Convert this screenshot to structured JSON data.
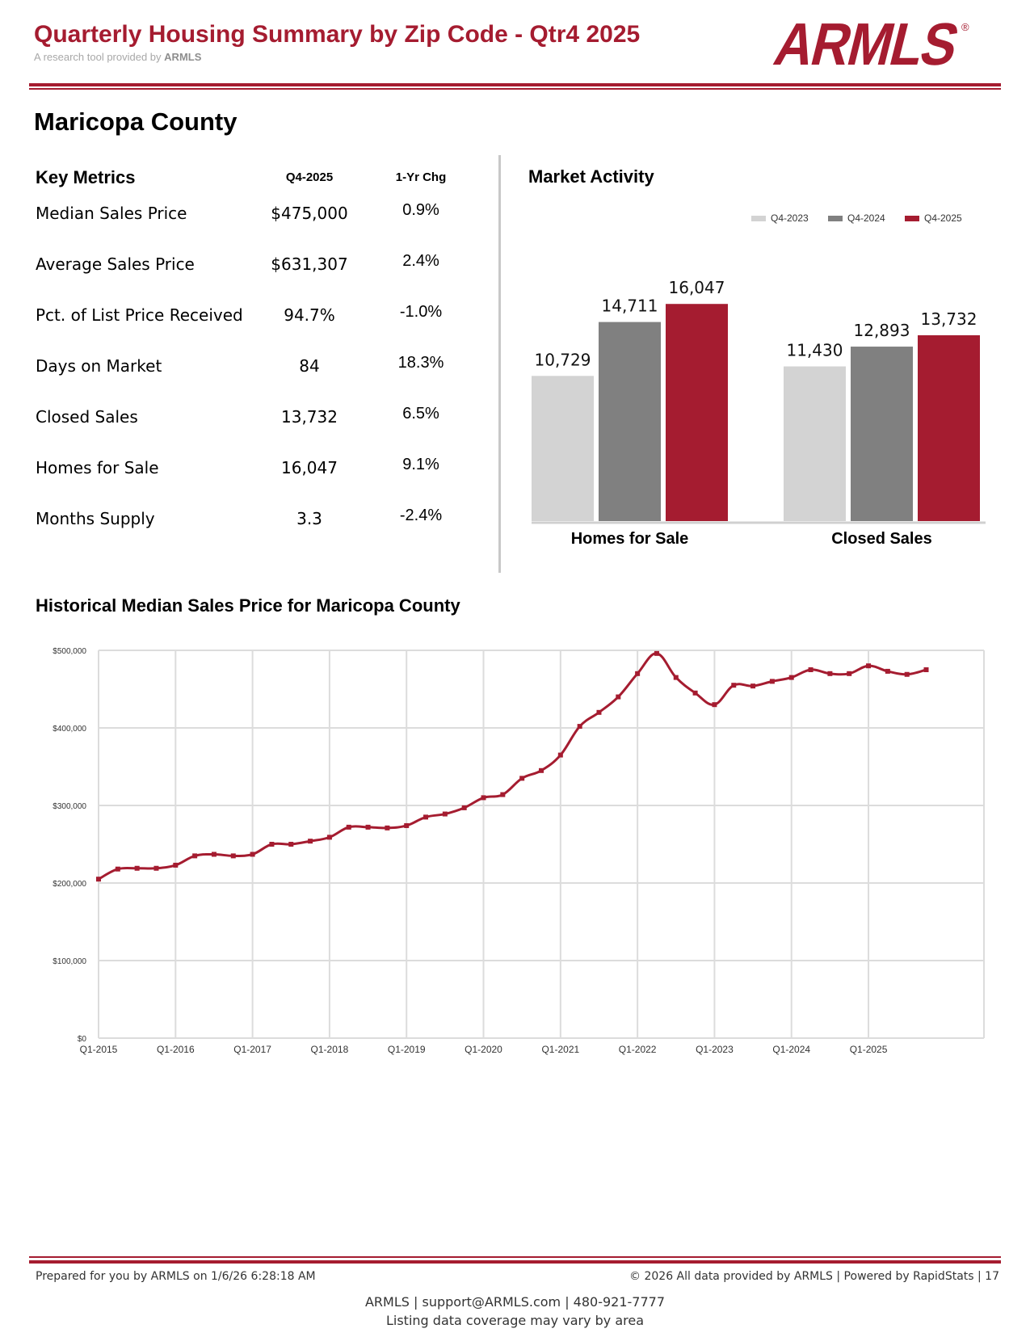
{
  "header": {
    "title": "Quarterly Housing Summary by Zip Code - Qtr4 2025",
    "subtitle_prefix": "A research tool provided by",
    "subtitle_brand": "ARMLS",
    "logo_text": "ARMLS",
    "logo_mark": "®"
  },
  "area": {
    "name": "Maricopa County"
  },
  "key_metrics": {
    "heading": "Key Metrics",
    "col_period": "Q4-2025",
    "col_change": "1-Yr Chg",
    "rows": [
      {
        "label": "Median Sales Price",
        "value": "$475,000",
        "change": "0.9%"
      },
      {
        "label": "Average Sales Price",
        "value": "$631,307",
        "change": "2.4%"
      },
      {
        "label": "Pct. of List Price Received",
        "value": "94.7%",
        "change": "-1.0%"
      },
      {
        "label": "Days on Market",
        "value": "84",
        "change": "18.3%"
      },
      {
        "label": "Closed Sales",
        "value": "13,732",
        "change": "6.5%"
      },
      {
        "label": "Homes for Sale",
        "value": "16,047",
        "change": "9.1%"
      },
      {
        "label": "Months Supply",
        "value": "3.3",
        "change": "-2.4%"
      }
    ]
  },
  "chart_data": [
    {
      "type": "bar",
      "title": "Market Activity",
      "categories": [
        "Homes for Sale",
        "Closed Sales"
      ],
      "series": [
        {
          "name": "Q4-2023",
          "values": [
            10729,
            11430
          ],
          "labels": [
            "10,729",
            "11,430"
          ],
          "color": "#d3d3d3"
        },
        {
          "name": "Q4-2024",
          "values": [
            14711,
            12893
          ],
          "labels": [
            "14,711",
            "12,893"
          ],
          "color": "#808080"
        },
        {
          "name": "Q4-2025",
          "values": [
            16047,
            13732
          ],
          "labels": [
            "16,047",
            "13,732"
          ],
          "color": "#a51c30"
        }
      ],
      "legend": "top-right",
      "ylim": [
        0,
        20000
      ],
      "grid": false
    },
    {
      "type": "line",
      "title": "Historical Median Sales Price for Maricopa County",
      "x_ticks": [
        "Q1-2015",
        "Q1-2016",
        "Q1-2017",
        "Q1-2018",
        "Q1-2019",
        "Q1-2020",
        "Q1-2021",
        "Q1-2022",
        "Q1-2023",
        "Q1-2024",
        "Q1-2025"
      ],
      "y_ticks": [
        "$0",
        "$100,000",
        "$200,000",
        "$300,000",
        "$400,000",
        "$500,000"
      ],
      "ylim": [
        0,
        500000
      ],
      "grid": true,
      "color": "#a51c30",
      "series": [
        {
          "name": "Median Sales Price",
          "x": [
            "Q1-2015",
            "Q2-2015",
            "Q3-2015",
            "Q4-2015",
            "Q1-2016",
            "Q2-2016",
            "Q3-2016",
            "Q4-2016",
            "Q1-2017",
            "Q2-2017",
            "Q3-2017",
            "Q4-2017",
            "Q1-2018",
            "Q2-2018",
            "Q3-2018",
            "Q4-2018",
            "Q1-2019",
            "Q2-2019",
            "Q3-2019",
            "Q4-2019",
            "Q1-2020",
            "Q2-2020",
            "Q3-2020",
            "Q4-2020",
            "Q1-2021",
            "Q2-2021",
            "Q3-2021",
            "Q4-2021",
            "Q1-2022",
            "Q2-2022",
            "Q3-2022",
            "Q4-2022",
            "Q1-2023",
            "Q2-2023",
            "Q3-2023",
            "Q4-2023",
            "Q1-2024",
            "Q2-2024",
            "Q3-2024",
            "Q4-2024",
            "Q1-2025",
            "Q2-2025",
            "Q3-2025",
            "Q4-2025"
          ],
          "values": [
            205000,
            218000,
            219000,
            219000,
            223000,
            235000,
            237000,
            235000,
            237000,
            250000,
            250000,
            254000,
            259000,
            272000,
            272000,
            271000,
            274000,
            285000,
            289000,
            297000,
            310000,
            314000,
            335000,
            345000,
            365000,
            402000,
            420000,
            440000,
            470000,
            496000,
            465000,
            445000,
            430000,
            455000,
            454000,
            460000,
            465000,
            475000,
            470000,
            470000,
            480000,
            473000,
            469000,
            475000
          ]
        }
      ]
    }
  ],
  "footer": {
    "prepared": "Prepared for you by ARMLS on 1/6/26 6:28:18 AM",
    "copyright": "© 2026 All data provided by ARMLS | Powered by RapidStats",
    "page": "| 17",
    "contact": "ARMLS | support@ARMLS.com | 480-921-7777",
    "disclaimer": "Listing data coverage may vary by area"
  }
}
